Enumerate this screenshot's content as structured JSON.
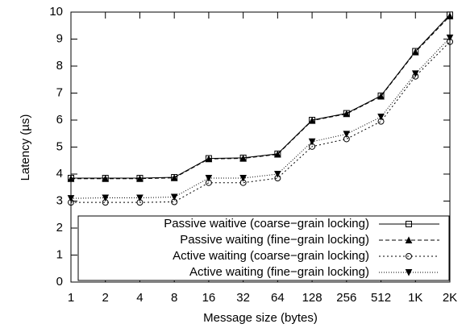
{
  "chart_data": {
    "type": "line",
    "x_label": "Message size (bytes)",
    "y_label": "Latency (µs)",
    "categories": [
      "1",
      "2",
      "4",
      "8",
      "16",
      "32",
      "64",
      "128",
      "256",
      "512",
      "1K",
      "2K"
    ],
    "ylim": [
      0,
      10
    ],
    "yticks": [
      0,
      1,
      2,
      3,
      4,
      5,
      6,
      7,
      8,
      9,
      10
    ],
    "legend": "bottom-right",
    "series": [
      {
        "name": "Passive waitive (coarse−grain locking)",
        "color": "#000000",
        "line_style": "solid",
        "marker": "square",
        "values": [
          3.85,
          3.85,
          3.85,
          3.88,
          4.58,
          4.6,
          4.75,
          6.0,
          6.25,
          6.9,
          8.55,
          9.9
        ]
      },
      {
        "name": "Passive waiting (fine−grain locking)",
        "color": "#000000",
        "line_style": "dashed",
        "marker": "triangle",
        "values": [
          3.83,
          3.83,
          3.83,
          3.86,
          4.56,
          4.58,
          4.73,
          5.98,
          6.23,
          6.88,
          8.52,
          9.85
        ]
      },
      {
        "name": "Active waiting (coarse−grain locking)",
        "color": "#000000",
        "line_style": "dotted",
        "marker": "circle",
        "values": [
          2.95,
          2.95,
          2.95,
          2.97,
          3.68,
          3.68,
          3.85,
          5.02,
          5.3,
          5.95,
          7.62,
          8.9
        ]
      },
      {
        "name": "Active waiting (fine−grain locking)",
        "color": "#000000",
        "line_style": "dotted-dense",
        "marker": "triangle-down",
        "values": [
          3.1,
          3.12,
          3.12,
          3.15,
          3.85,
          3.85,
          4.0,
          5.2,
          5.48,
          6.12,
          7.72,
          9.05
        ]
      }
    ]
  }
}
